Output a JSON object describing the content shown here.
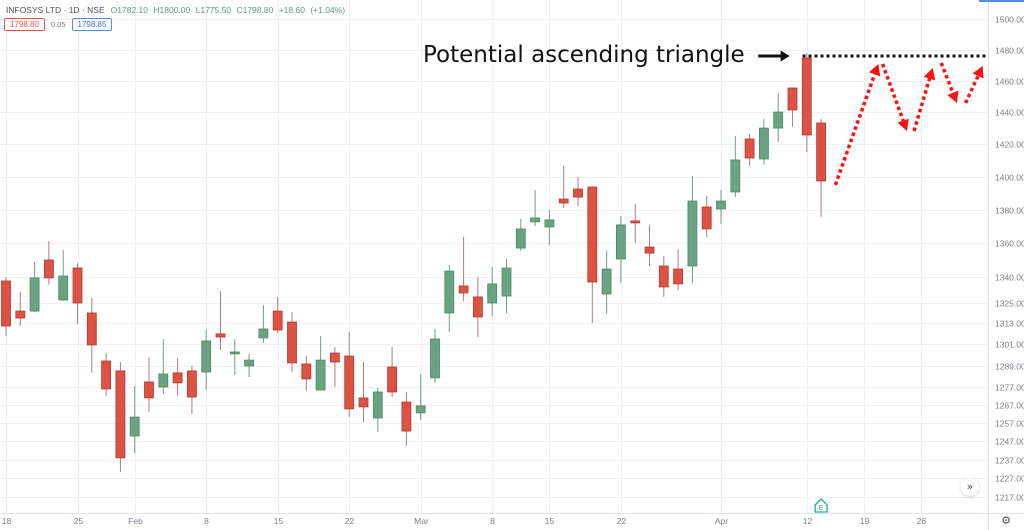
{
  "header": {
    "symbol": "INFOSYS LTD",
    "sep1": "·",
    "interval": "1D",
    "sep2": "·",
    "exchange": "NSE",
    "ohlc": {
      "open": "O1782.10",
      "high": "H1800.00",
      "low": "L1775.50",
      "close": "C1798.80",
      "change": "+18.60",
      "change_pct": "(+1.04%)"
    },
    "bid": "1798.80",
    "spread": "0.05",
    "ask": "1798.85"
  },
  "controls": {
    "scroll_to_realtime_icon": "»",
    "settings_icon": "⚙"
  },
  "colors": {
    "up_body": "#6aa384",
    "up_border": "#4c8a68",
    "up_wick": "#6e9f83",
    "down_body": "#dc5344",
    "down_border": "#b33b2f",
    "down_wick": "#b97b7b",
    "grid": "#eef0f4",
    "axis_text": "#7a7f8a",
    "annotation_text": "#111111",
    "projection": "#ff1010",
    "resistance": "#111111",
    "event_marker": "#22ab94",
    "accent_blue": "#5b8def"
  },
  "chart_data": {
    "type": "candlestick",
    "title": "INFOSYS LTD · 1D · NSE",
    "scale": "log",
    "ylim": [
      1212,
      1503
    ],
    "grid": true,
    "y_ticks": [
      {
        "value": 1500,
        "label": "1500.00"
      },
      {
        "value": 1480,
        "label": "1480.00"
      },
      {
        "value": 1460,
        "label": "1460.00"
      },
      {
        "value": 1440,
        "label": "1440.00"
      },
      {
        "value": 1420,
        "label": "1420.00"
      },
      {
        "value": 1400,
        "label": "1400.00"
      },
      {
        "value": 1380,
        "label": "1380.00"
      },
      {
        "value": 1360,
        "label": "1360.00"
      },
      {
        "value": 1340,
        "label": "1340.00"
      },
      {
        "value": 1325,
        "label": "1325.00"
      },
      {
        "value": 1313,
        "label": "1313.00"
      },
      {
        "value": 1301,
        "label": "1301.00"
      },
      {
        "value": 1289,
        "label": "1289.00"
      },
      {
        "value": 1277,
        "label": "1277.00"
      },
      {
        "value": 1267,
        "label": "1267.00"
      },
      {
        "value": 1257,
        "label": "1257.00"
      },
      {
        "value": 1247,
        "label": "1247.00"
      },
      {
        "value": 1237,
        "label": "1237.00"
      },
      {
        "value": 1227,
        "label": "1227.00"
      },
      {
        "value": 1217,
        "label": "1217.00"
      }
    ],
    "x_ticks": [
      {
        "label": "18",
        "index": 0
      },
      {
        "label": "25",
        "index": 5
      },
      {
        "label": "Feb",
        "index": 9
      },
      {
        "label": "8",
        "index": 14
      },
      {
        "label": "15",
        "index": 19
      },
      {
        "label": "22",
        "index": 24
      },
      {
        "label": "Mar",
        "index": 29
      },
      {
        "label": "8",
        "index": 34
      },
      {
        "label": "15",
        "index": 38
      },
      {
        "label": "22",
        "index": 43
      },
      {
        "label": "Apr",
        "index": 50
      },
      {
        "label": "12",
        "index": 56
      },
      {
        "label": "19",
        "index": 60
      },
      {
        "label": "26",
        "index": 64
      }
    ],
    "candle_fields": [
      "open",
      "high",
      "low",
      "close"
    ],
    "candles": [
      [
        1337.6,
        1340.0,
        1305.8,
        1311.5
      ],
      [
        1320.1,
        1331.2,
        1311.5,
        1316.1
      ],
      [
        1320.1,
        1348.7,
        1319.5,
        1339.4
      ],
      [
        1349.9,
        1361.2,
        1335.3,
        1339.4
      ],
      [
        1326.5,
        1355.8,
        1326.0,
        1340.5
      ],
      [
        1345.2,
        1348.1,
        1312.6,
        1324.8
      ],
      [
        1319.0,
        1327.7,
        1284.9,
        1300.7
      ],
      [
        1291.6,
        1296.1,
        1272.0,
        1275.9
      ],
      [
        1286.0,
        1291.0,
        1230.4,
        1238.0
      ],
      [
        1249.9,
        1277.6,
        1240.6,
        1260.3
      ],
      [
        1279.8,
        1293.8,
        1263.1,
        1270.9
      ],
      [
        1277.0,
        1304.1,
        1273.1,
        1284.3
      ],
      [
        1284.9,
        1293.3,
        1272.0,
        1279.3
      ],
      [
        1286.0,
        1288.8,
        1262.0,
        1271.4
      ],
      [
        1285.4,
        1309.8,
        1275.3,
        1303.0
      ],
      [
        1307.0,
        1331.7,
        1297.8,
        1305.2
      ],
      [
        1295.6,
        1304.1,
        1283.7,
        1296.7
      ],
      [
        1288.8,
        1295.6,
        1282.6,
        1292.1
      ],
      [
        1304.7,
        1323.6,
        1301.8,
        1309.8
      ],
      [
        1320.1,
        1328.3,
        1307.5,
        1309.2
      ],
      [
        1313.8,
        1319.6,
        1285.4,
        1290.5
      ],
      [
        1289.9,
        1294.4,
        1274.8,
        1281.5
      ],
      [
        1275.3,
        1305.8,
        1275.0,
        1292.1
      ],
      [
        1296.1,
        1299.5,
        1277.0,
        1291.0
      ],
      [
        1294.4,
        1308.1,
        1260.3,
        1264.8
      ],
      [
        1270.9,
        1291.0,
        1257.6,
        1265.9
      ],
      [
        1259.8,
        1276.5,
        1252.1,
        1274.2
      ],
      [
        1288.2,
        1299.5,
        1271.4,
        1274.2
      ],
      [
        1268.6,
        1274.2,
        1244.5,
        1252.6
      ],
      [
        1262.6,
        1284.3,
        1258.7,
        1266.5
      ],
      [
        1282.1,
        1309.8,
        1279.3,
        1304.1
      ],
      [
        1319.0,
        1347.0,
        1308.1,
        1343.4
      ],
      [
        1334.7,
        1363.6,
        1325.9,
        1330.6
      ],
      [
        1328.3,
        1340.0,
        1305.2,
        1316.7
      ],
      [
        1324.8,
        1345.8,
        1317.2,
        1335.9
      ],
      [
        1328.8,
        1350.5,
        1319.0,
        1345.2
      ],
      [
        1357.0,
        1374.4,
        1355.2,
        1368.4
      ],
      [
        1372.6,
        1391.9,
        1370.2,
        1375.0
      ],
      [
        1369.6,
        1379.8,
        1358.8,
        1373.8
      ],
      [
        1386.4,
        1406.6,
        1381.0,
        1384.0
      ],
      [
        1392.5,
        1399.8,
        1382.2,
        1387.6
      ],
      [
        1393.7,
        1394.0,
        1313.2,
        1337.0
      ],
      [
        1330.0,
        1355.2,
        1318.4,
        1344.6
      ],
      [
        1350.5,
        1376.2,
        1336.4,
        1370.8
      ],
      [
        1373.2,
        1383.4,
        1360.0,
        1372.0
      ],
      [
        1357.6,
        1370.8,
        1346.4,
        1354.0
      ],
      [
        1346.4,
        1352.3,
        1328.3,
        1334.1
      ],
      [
        1344.6,
        1356.4,
        1332.3,
        1335.9
      ],
      [
        1346.4,
        1400.4,
        1336.4,
        1385.2
      ],
      [
        1381.6,
        1388.2,
        1363.6,
        1368.4
      ],
      [
        1380.4,
        1391.9,
        1371.4,
        1385.2
      ],
      [
        1390.7,
        1425.2,
        1387.6,
        1410.3
      ],
      [
        1423.3,
        1426.4,
        1406.6,
        1411.5
      ],
      [
        1410.9,
        1435.8,
        1407.2,
        1430.1
      ],
      [
        1430.1,
        1452.2,
        1421.4,
        1440.2
      ],
      [
        1455.4,
        1455.6,
        1430.8,
        1441.5
      ],
      [
        1474.6,
        1477.8,
        1415.2,
        1425.8
      ],
      [
        1433.3,
        1435.8,
        1375.6,
        1397.4
      ]
    ],
    "annotations": {
      "label": {
        "text": "Potential ascending triangle"
      },
      "pointer_arrow": {
        "from_index": 52.6,
        "to_index": 54.8,
        "price": 1475.9
      },
      "resistance_line": {
        "from_index": 55.7,
        "to_index": 68.7,
        "price": 1475.9
      },
      "projection_path": [
        [
          [
            58.0,
            1395.0
          ],
          [
            61.0,
            1470.8
          ]
        ],
        [
          [
            61.3,
            1470.8
          ],
          [
            63.0,
            1428.3
          ]
        ],
        [
          [
            63.5,
            1428.3
          ],
          [
            64.8,
            1468.2
          ]
        ],
        [
          [
            65.4,
            1471.4
          ],
          [
            66.5,
            1445.9
          ]
        ],
        [
          [
            67.1,
            1445.9
          ],
          [
            68.3,
            1469.5
          ]
        ]
      ]
    },
    "events": [
      {
        "label": "E",
        "index": 57
      }
    ]
  }
}
